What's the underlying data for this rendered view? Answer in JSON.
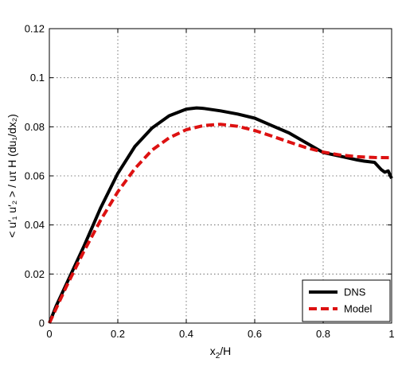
{
  "chart_data": {
    "type": "line",
    "title": "",
    "xlabel": "x",
    "xlabel_sub": "2",
    "xlabel_suffix": "/H",
    "ylabel": "< u′₁ u′₂ > / uτ H (du₁/dx₂)",
    "xlim": [
      0,
      1
    ],
    "ylim": [
      0,
      0.12
    ],
    "xticks": [
      0,
      0.2,
      0.4,
      0.6,
      0.8,
      1
    ],
    "xtick_labels": [
      "0",
      "0.2",
      "0.4",
      "0.6",
      "0.8",
      "1"
    ],
    "yticks": [
      0,
      0.02,
      0.04,
      0.06,
      0.08,
      0.1,
      0.12
    ],
    "ytick_labels": [
      "0",
      "0.02",
      "0.04",
      "0.06",
      "0.08",
      "0.1",
      "0.12"
    ],
    "grid": true,
    "legend_position": "bottom-right",
    "series": [
      {
        "name": "DNS",
        "color": "#000000",
        "dash": "solid",
        "x": [
          0,
          0.02,
          0.05,
          0.1,
          0.15,
          0.2,
          0.25,
          0.3,
          0.35,
          0.4,
          0.43,
          0.45,
          0.5,
          0.55,
          0.6,
          0.65,
          0.7,
          0.75,
          0.8,
          0.85,
          0.9,
          0.92,
          0.95,
          0.97,
          0.98,
          0.99,
          1.0
        ],
        "y": [
          0,
          0.007,
          0.016,
          0.031,
          0.047,
          0.061,
          0.072,
          0.0795,
          0.0845,
          0.0872,
          0.0877,
          0.0875,
          0.0865,
          0.0852,
          0.0835,
          0.0805,
          0.0775,
          0.0735,
          0.0695,
          0.068,
          0.0665,
          0.066,
          0.0655,
          0.0625,
          0.0615,
          0.062,
          0.059
        ]
      },
      {
        "name": "Model",
        "color": "#dd1111",
        "dash": "dashed",
        "x": [
          0,
          0.02,
          0.05,
          0.1,
          0.15,
          0.2,
          0.25,
          0.3,
          0.35,
          0.4,
          0.45,
          0.5,
          0.55,
          0.6,
          0.65,
          0.7,
          0.75,
          0.8,
          0.85,
          0.9,
          0.95,
          1.0
        ],
        "y": [
          0,
          0.006,
          0.015,
          0.029,
          0.042,
          0.0535,
          0.063,
          0.0705,
          0.0755,
          0.0788,
          0.0805,
          0.081,
          0.0802,
          0.0785,
          0.0762,
          0.0738,
          0.0715,
          0.0697,
          0.0685,
          0.0678,
          0.0675,
          0.0674
        ]
      }
    ]
  }
}
